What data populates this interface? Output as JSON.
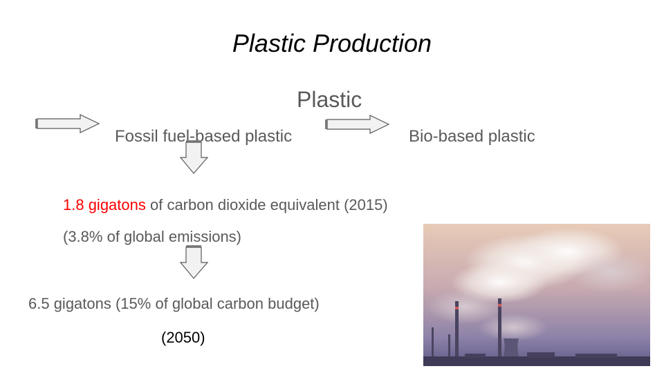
{
  "slide": {
    "title": "Plastic Production",
    "subtitle": "Plastic",
    "left_branch": "Fossil fuel-based plastic",
    "right_branch": "Bio-based plastic",
    "emission_2015": {
      "amount": "1.8 gigatons",
      "rest": " of carbon dioxide equivalent (2015)",
      "share": "(3.8% of global emissions)"
    },
    "emission_2050": {
      "text": "6.5 gigatons (15% of global carbon budget)",
      "year": "(2050)"
    }
  },
  "colors": {
    "accent_red": "#ff0000",
    "body_gray": "#595959"
  },
  "icons": [
    "right-arrow-icon",
    "right-arrow-icon",
    "down-arrow-icon",
    "down-arrow-icon"
  ]
}
